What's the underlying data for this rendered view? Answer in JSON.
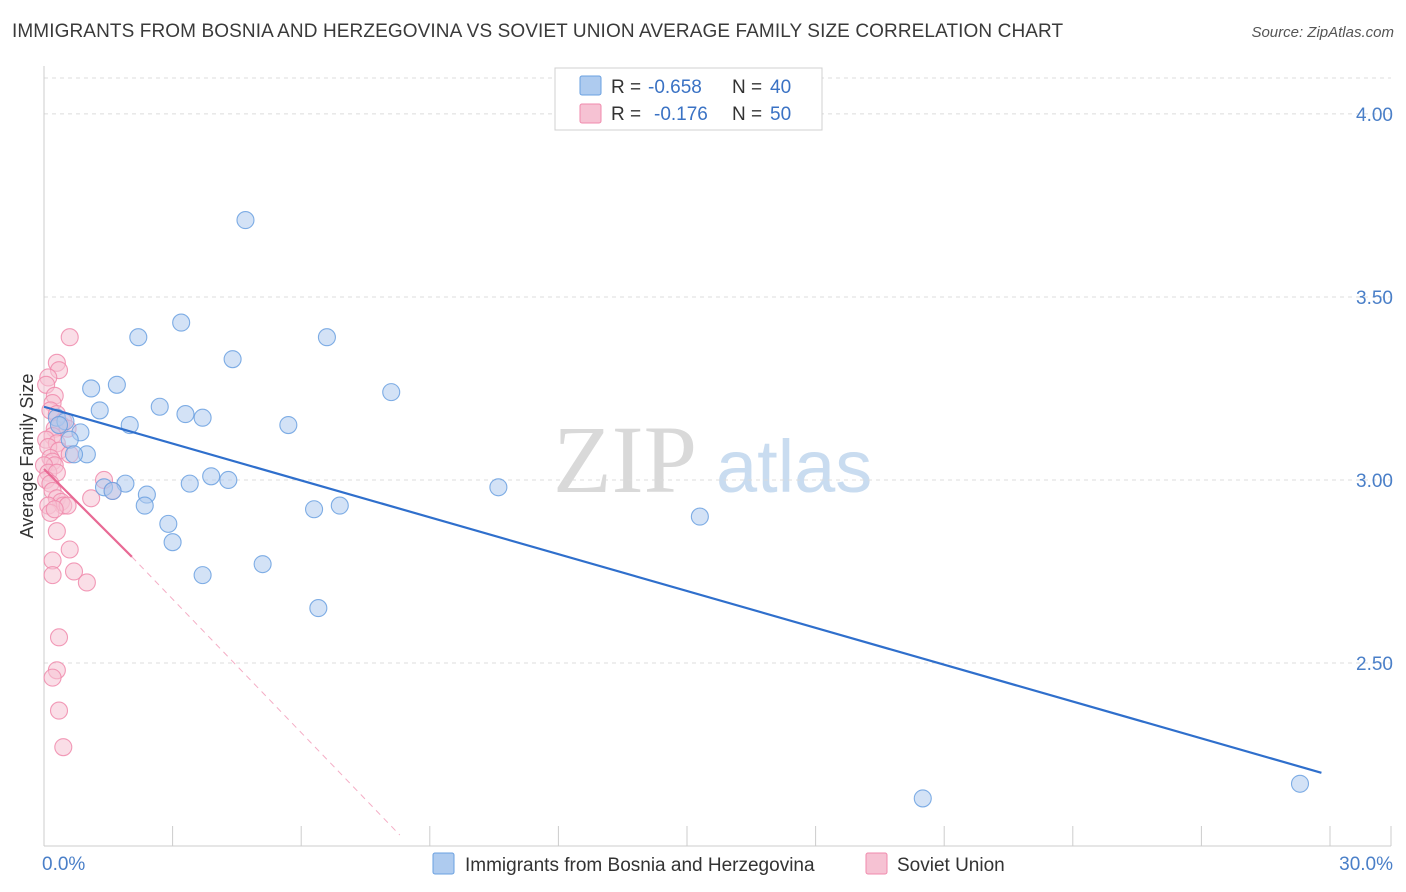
{
  "title": "IMMIGRANTS FROM BOSNIA AND HERZEGOVINA VS SOVIET UNION AVERAGE FAMILY SIZE CORRELATION CHART",
  "source": "Source: ZipAtlas.com",
  "watermark": {
    "zip": "ZIP",
    "atlas": "atlas"
  },
  "legend": [
    {
      "r_label": "R =",
      "r_value": "-0.658",
      "n_label": "N =",
      "n_value": "40",
      "color": "#a9c8f0"
    },
    {
      "r_label": "R =",
      "r_value": "-0.176",
      "n_label": "N =",
      "n_value": "50",
      "color": "#f6b8cc"
    }
  ],
  "chart_data": {
    "type": "scatter",
    "title": "IMMIGRANTS FROM BOSNIA AND HERZEGOVINA VS SOVIET UNION AVERAGE FAMILY SIZE CORRELATION CHART",
    "xlabel": "",
    "ylabel": "Average Family Size",
    "xlim": [
      0,
      30
    ],
    "ylim": [
      2.0,
      4.12
    ],
    "x_tick_labels": [
      {
        "value": 0,
        "label": "0.0%"
      },
      {
        "value": 30,
        "label": "30.0%"
      }
    ],
    "y_ticks": [
      {
        "value": 2.5,
        "label": "2.50"
      },
      {
        "value": 3.0,
        "label": "3.00"
      },
      {
        "value": 3.5,
        "label": "3.50"
      },
      {
        "value": 4.0,
        "label": "4.00"
      }
    ],
    "series": [
      {
        "name": "Immigrants from Bosnia and Herzegovina",
        "color": "#6aa0e0",
        "fill": "#aecbef",
        "trend": {
          "x": [
            0,
            29.8
          ],
          "y": [
            3.2,
            2.2
          ],
          "dashed_extension": false
        },
        "points": [
          [
            4.7,
            3.71
          ],
          [
            3.2,
            3.43
          ],
          [
            2.2,
            3.39
          ],
          [
            6.6,
            3.39
          ],
          [
            4.4,
            3.33
          ],
          [
            1.7,
            3.26
          ],
          [
            1.1,
            3.25
          ],
          [
            8.1,
            3.24
          ],
          [
            2.7,
            3.2
          ],
          [
            1.3,
            3.19
          ],
          [
            3.3,
            3.18
          ],
          [
            3.7,
            3.17
          ],
          [
            0.3,
            3.17
          ],
          [
            0.5,
            3.16
          ],
          [
            0.35,
            3.15
          ],
          [
            2.0,
            3.15
          ],
          [
            5.7,
            3.15
          ],
          [
            0.85,
            3.13
          ],
          [
            0.6,
            3.11
          ],
          [
            1.0,
            3.07
          ],
          [
            0.7,
            3.07
          ],
          [
            3.9,
            3.01
          ],
          [
            4.3,
            3.0
          ],
          [
            3.4,
            2.99
          ],
          [
            1.9,
            2.99
          ],
          [
            1.4,
            2.98
          ],
          [
            1.6,
            2.97
          ],
          [
            10.6,
            2.98
          ],
          [
            2.4,
            2.96
          ],
          [
            2.35,
            2.93
          ],
          [
            6.9,
            2.93
          ],
          [
            6.3,
            2.92
          ],
          [
            15.3,
            2.9
          ],
          [
            2.9,
            2.88
          ],
          [
            3.0,
            2.83
          ],
          [
            5.1,
            2.77
          ],
          [
            3.7,
            2.74
          ],
          [
            6.4,
            2.65
          ],
          [
            20.5,
            2.13
          ],
          [
            29.3,
            2.17
          ]
        ]
      },
      {
        "name": "Soviet Union",
        "color": "#f08aac",
        "fill": "#f6c2d3",
        "trend": {
          "x": [
            0,
            2.05
          ],
          "y": [
            3.03,
            2.79
          ],
          "dashed_extension": true,
          "dashed_to": {
            "x": 8.3,
            "y": 2.03
          }
        },
        "points": [
          [
            0.6,
            3.39
          ],
          [
            0.3,
            3.32
          ],
          [
            0.35,
            3.3
          ],
          [
            0.1,
            3.28
          ],
          [
            0.05,
            3.26
          ],
          [
            0.25,
            3.23
          ],
          [
            0.2,
            3.21
          ],
          [
            0.15,
            3.19
          ],
          [
            0.3,
            3.18
          ],
          [
            0.45,
            3.16
          ],
          [
            0.35,
            3.15
          ],
          [
            0.4,
            3.15
          ],
          [
            0.25,
            3.14
          ],
          [
            0.55,
            3.14
          ],
          [
            0.2,
            3.12
          ],
          [
            0.05,
            3.11
          ],
          [
            0.3,
            3.1
          ],
          [
            0.1,
            3.09
          ],
          [
            0.35,
            3.08
          ],
          [
            0.6,
            3.07
          ],
          [
            0.15,
            3.06
          ],
          [
            0.2,
            3.05
          ],
          [
            0.25,
            3.04
          ],
          [
            0.0,
            3.04
          ],
          [
            0.1,
            3.02
          ],
          [
            0.3,
            3.02
          ],
          [
            0.05,
            3.0
          ],
          [
            0.15,
            2.99
          ],
          [
            0.2,
            2.97
          ],
          [
            1.6,
            2.97
          ],
          [
            0.3,
            2.95
          ],
          [
            1.1,
            2.95
          ],
          [
            0.4,
            2.94
          ],
          [
            0.45,
            2.93
          ],
          [
            0.1,
            2.93
          ],
          [
            0.15,
            2.91
          ],
          [
            0.3,
            2.86
          ],
          [
            0.6,
            2.81
          ],
          [
            0.2,
            2.78
          ],
          [
            0.7,
            2.75
          ],
          [
            0.2,
            2.74
          ],
          [
            1.0,
            2.72
          ],
          [
            0.35,
            2.57
          ],
          [
            0.3,
            2.48
          ],
          [
            0.2,
            2.46
          ],
          [
            0.35,
            2.37
          ],
          [
            0.45,
            2.27
          ],
          [
            0.55,
            2.93
          ],
          [
            1.4,
            3.0
          ],
          [
            0.25,
            2.92
          ]
        ]
      }
    ]
  }
}
